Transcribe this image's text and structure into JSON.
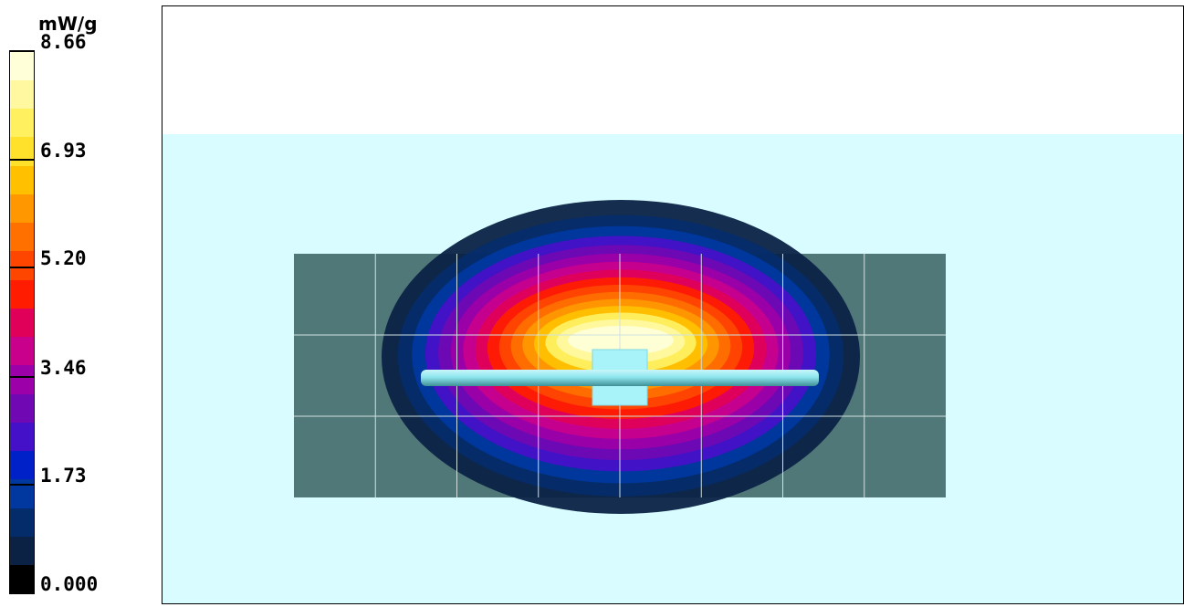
{
  "chart_data": {
    "type": "heatmap",
    "colorbar": {
      "unit": "mW/g",
      "tick_labels": [
        "8.66",
        "6.93",
        "5.20",
        "3.46",
        "1.73",
        "0.000"
      ],
      "tick_values": [
        8.66,
        6.93,
        5.2,
        3.46,
        1.73,
        0.0
      ],
      "range": [
        0.0,
        8.66
      ],
      "colors": [
        "#000000",
        "#0b2244",
        "#052c6a",
        "#0038a0",
        "#0020c8",
        "#4410c8",
        "#7008b4",
        "#9c00a8",
        "#c8008c",
        "#e0005a",
        "#ff1c00",
        "#ff4600",
        "#ff7000",
        "#ff9800",
        "#ffc000",
        "#ffe02a",
        "#fff060",
        "#fff8a0",
        "#ffffd8"
      ]
    },
    "grid": {
      "columns": 8,
      "rows": 3,
      "visible": true
    },
    "field_levels": [
      0.8,
      1.3,
      1.8,
      2.3,
      2.8,
      3.3,
      3.8,
      4.3,
      4.8,
      5.3,
      5.8,
      6.3,
      6.8,
      7.3,
      7.8,
      8.3
    ],
    "peak_value": 8.66,
    "colors": {
      "phantom": "#d8fcff",
      "scan_background": "#517878",
      "antenna": "#8fe6ee",
      "grid_line": "#cfe0e0"
    }
  }
}
